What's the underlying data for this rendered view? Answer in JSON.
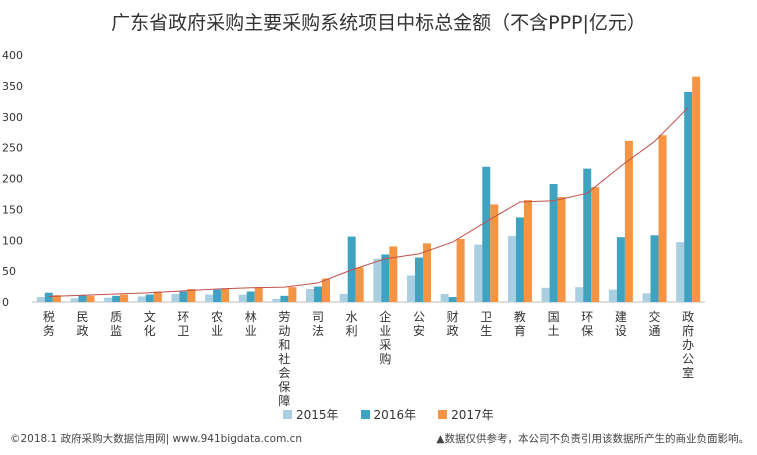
{
  "title": "广东省政府采购主要采购系统项目中标总金额（不含PPP|亿元）",
  "footer": {
    "source": "©2018.1 政府采购大数据信用网| www.941bigdata.com.cn",
    "disclaimer": "▲数据仅供参考，本公司不负责引用该数据所产生的商业负面影响。"
  },
  "colors": {
    "s2015": "#a9cfe0",
    "s2016": "#3ea3c1",
    "s2017": "#f59443",
    "trend": "#c0504d",
    "axis": "#bfbfbf"
  },
  "chart_data": {
    "type": "bar",
    "categories": [
      "税务",
      "民政",
      "质监",
      "文化",
      "环卫",
      "农业",
      "林业",
      "劳动和社会保障",
      "司法",
      "水利",
      "企业采购",
      "公安",
      "财政",
      "卫生",
      "教育",
      "国土",
      "环保",
      "建设",
      "交通",
      "政府办公室"
    ],
    "series": [
      {
        "name": "2015年",
        "values": [
          8,
          6,
          7,
          9,
          13,
          12,
          12,
          5,
          21,
          13,
          70,
          43,
          13,
          93,
          107,
          23,
          24,
          20,
          14,
          97
        ]
      },
      {
        "name": "2016年",
        "values": [
          15,
          11,
          10,
          12,
          17,
          20,
          17,
          10,
          25,
          106,
          77,
          72,
          8,
          219,
          137,
          191,
          216,
          105,
          108,
          340
        ]
      },
      {
        "name": "2017年",
        "values": [
          11,
          10,
          12,
          17,
          21,
          22,
          24,
          24,
          38,
          56,
          90,
          95,
          102,
          158,
          165,
          170,
          186,
          261,
          270,
          365
        ]
      }
    ],
    "trendline": {
      "values": [
        9,
        11,
        13,
        15,
        18,
        21,
        23,
        24,
        31,
        52,
        70,
        78,
        97,
        130,
        162,
        164,
        176,
        220,
        260,
        315
      ]
    },
    "ylim": [
      0,
      400
    ],
    "yticks": [
      0,
      50,
      100,
      150,
      200,
      250,
      300,
      350,
      400
    ],
    "grid": false,
    "legend_position": "bottom"
  }
}
